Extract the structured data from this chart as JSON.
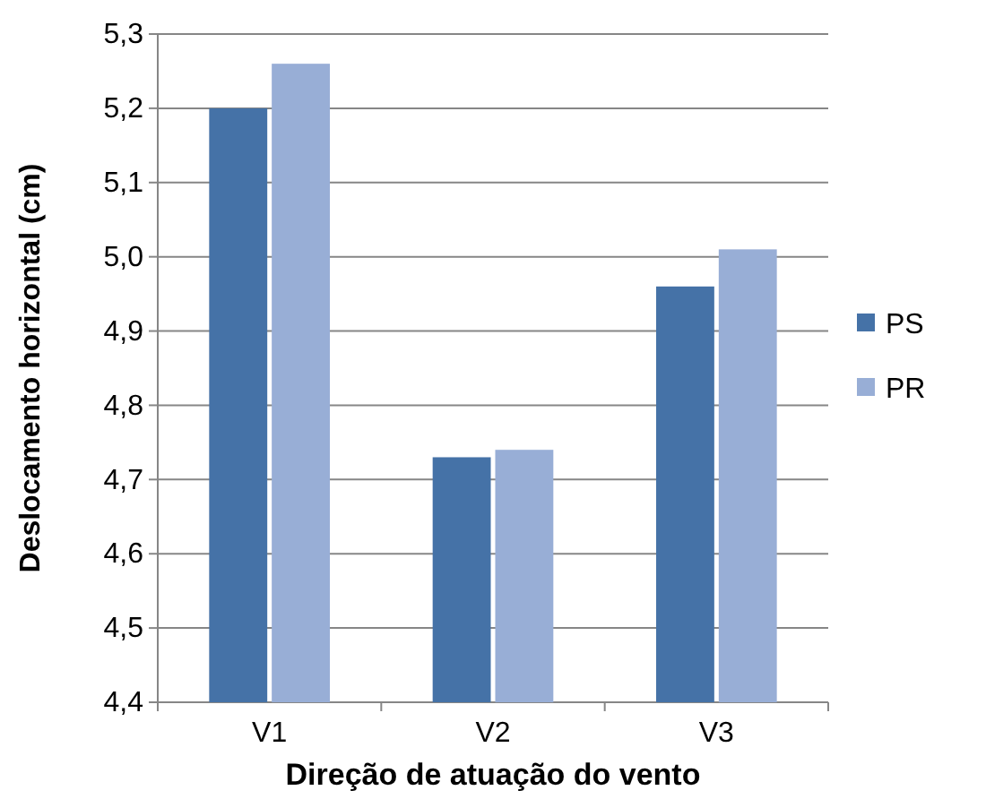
{
  "chart_data": {
    "type": "bar",
    "xlabel": "Direção de atuação do vento",
    "ylabel": "Deslocamento horizontal (cm)",
    "categories": [
      "V1",
      "V2",
      "V3"
    ],
    "series": [
      {
        "name": "PS",
        "color": "#4572a7",
        "values": [
          5.2,
          4.73,
          4.96
        ]
      },
      {
        "name": "PR",
        "color": "#98aed6",
        "values": [
          5.26,
          4.74,
          5.01
        ]
      }
    ],
    "ylim": [
      4.4,
      5.3
    ],
    "yticks": [
      {
        "value": 4.4,
        "label": "4,4"
      },
      {
        "value": 4.5,
        "label": "4,5"
      },
      {
        "value": 4.6,
        "label": "4,6"
      },
      {
        "value": 4.7,
        "label": "4,7"
      },
      {
        "value": 4.8,
        "label": "4,8"
      },
      {
        "value": 4.9,
        "label": "4,9"
      },
      {
        "value": 5.0,
        "label": "5,0"
      },
      {
        "value": 5.1,
        "label": "5,1"
      },
      {
        "value": 5.2,
        "label": "5,2"
      },
      {
        "value": 5.3,
        "label": "5,3"
      }
    ],
    "grid": "y",
    "legend": "right"
  }
}
